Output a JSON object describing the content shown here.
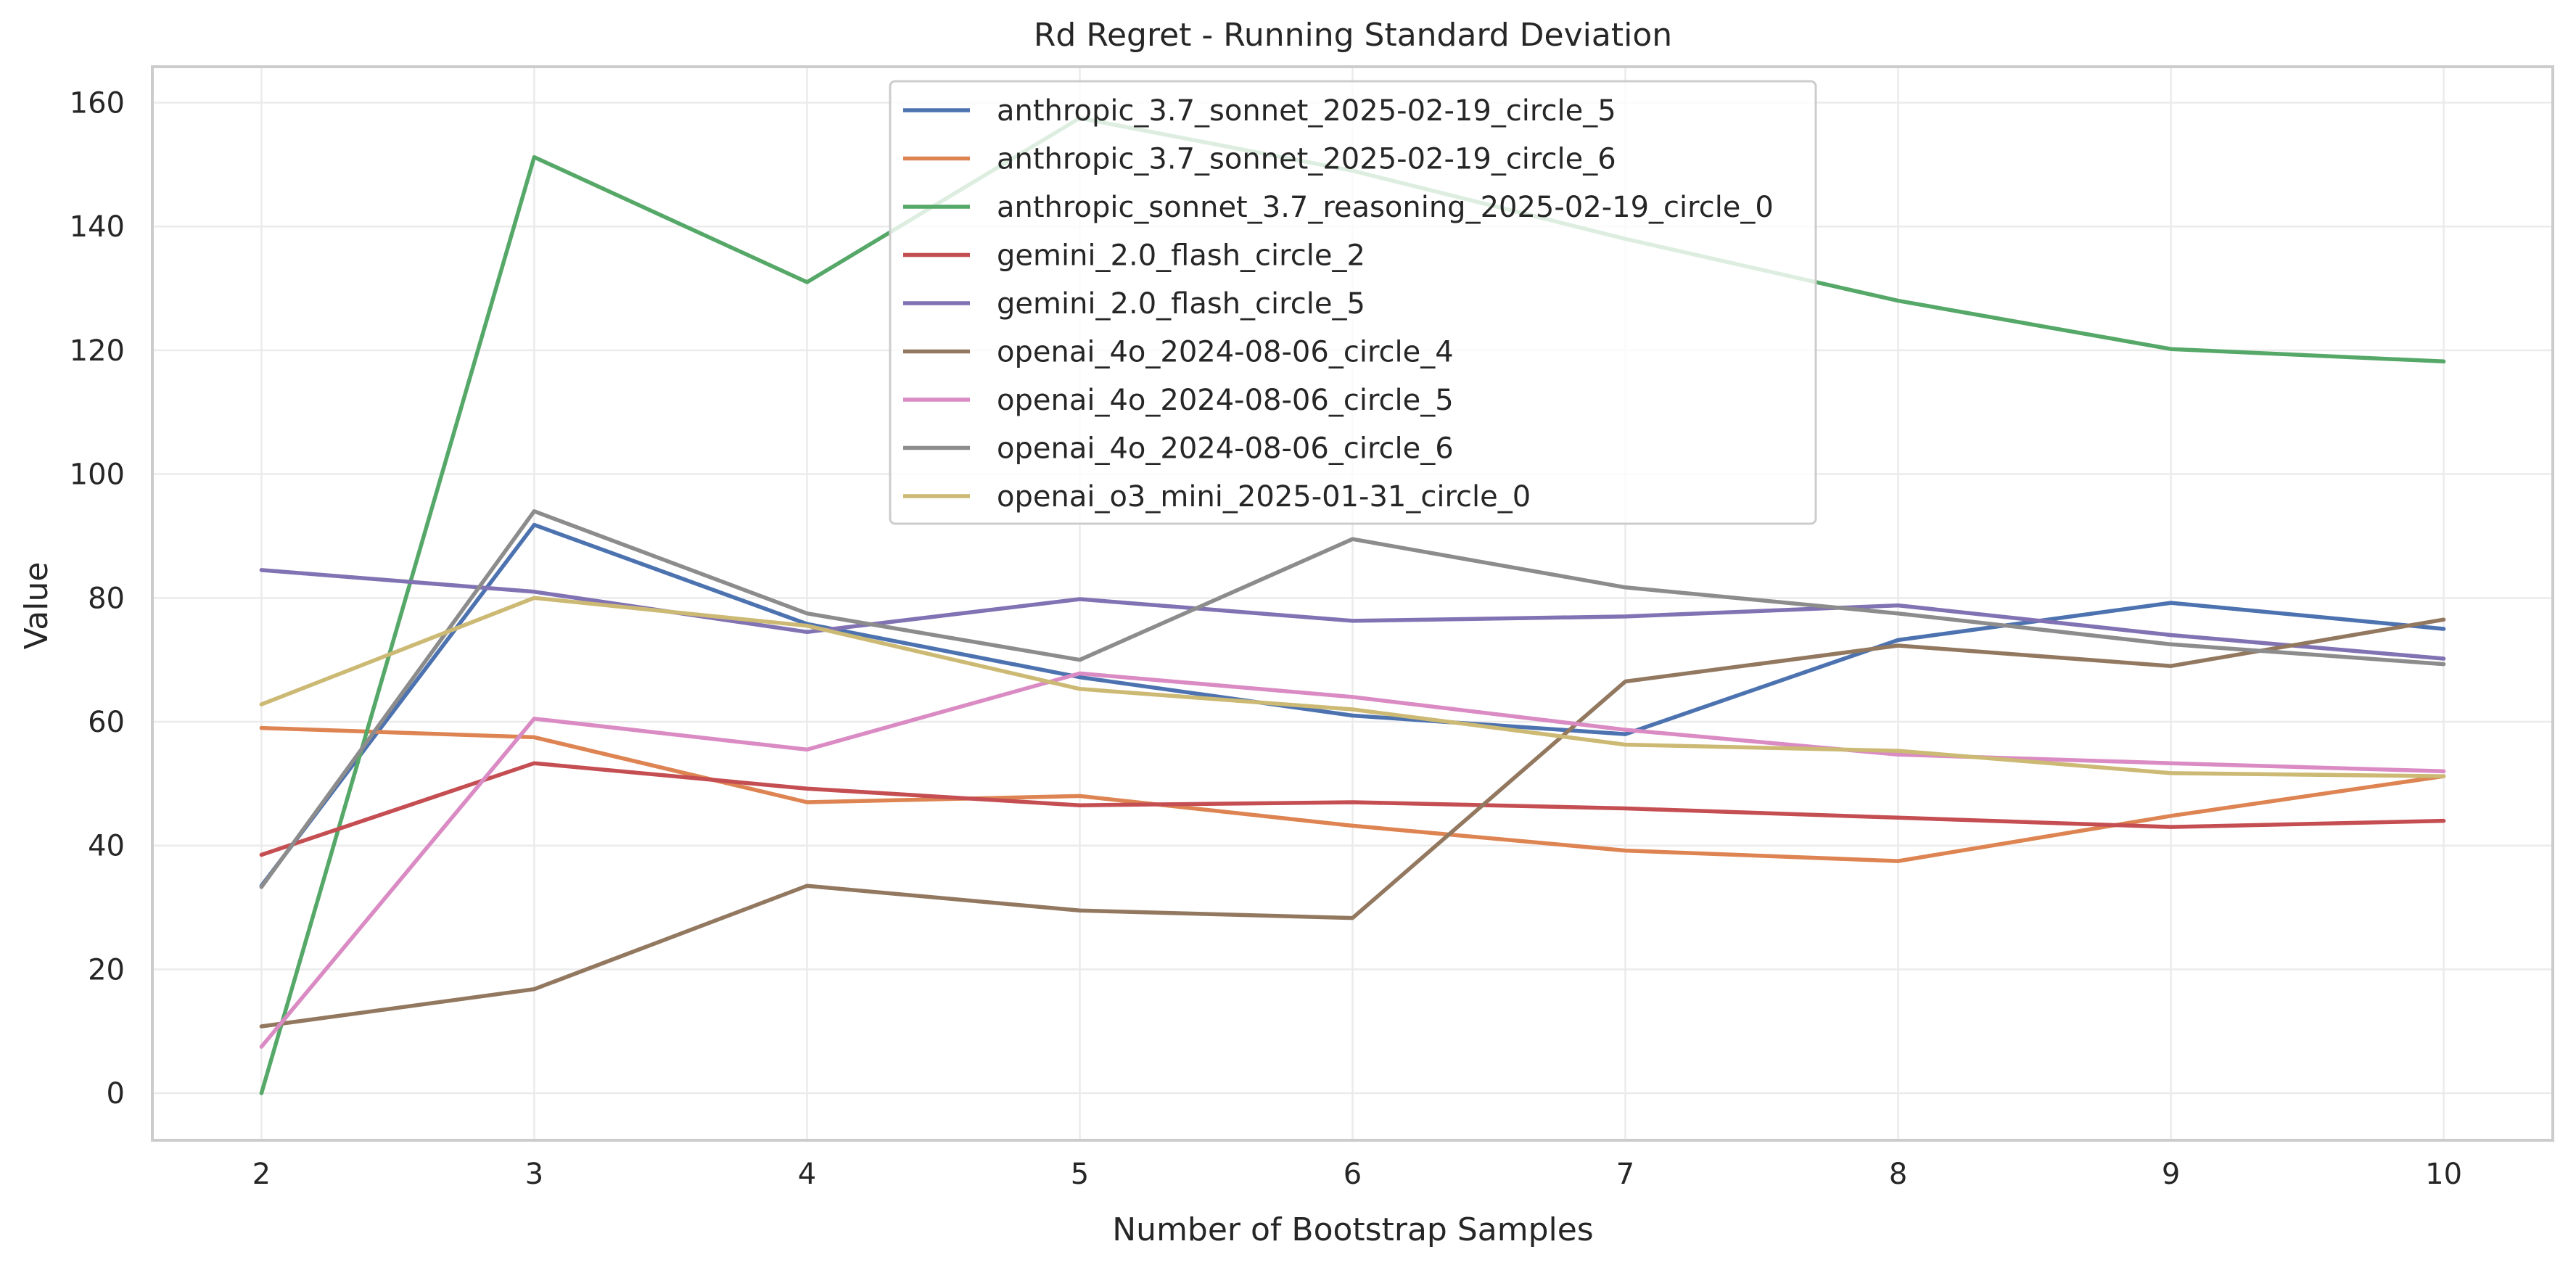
{
  "chart_data": {
    "type": "line",
    "title": "Rd Regret - Running Standard Deviation",
    "xlabel": "Number of Bootstrap Samples",
    "ylabel": "Value",
    "x": [
      2,
      3,
      4,
      5,
      6,
      7,
      8,
      9,
      10
    ],
    "xlim": [
      1.6,
      10.4
    ],
    "ylim": [
      -7.6,
      165.8
    ],
    "xticks": [
      2,
      3,
      4,
      5,
      6,
      7,
      8,
      9,
      10
    ],
    "yticks": [
      0,
      20,
      40,
      60,
      80,
      100,
      120,
      140,
      160
    ],
    "grid": true,
    "legend_position": "top-center",
    "series": [
      {
        "name": "anthropic_3.7_sonnet_2025-02-19_circle_5",
        "color": "#4c72b0",
        "values": [
          33.5,
          91.8,
          75.8,
          67.2,
          61.0,
          58.0,
          73.2,
          79.2,
          75.0
        ]
      },
      {
        "name": "anthropic_3.7_sonnet_2025-02-19_circle_6",
        "color": "#dd8452",
        "values": [
          59.0,
          57.5,
          47.0,
          48.0,
          43.2,
          39.2,
          37.5,
          44.8,
          51.2
        ]
      },
      {
        "name": "anthropic_sonnet_3.7_reasoning_2025-02-19_circle_0",
        "color": "#55a868",
        "values": [
          0.0,
          151.2,
          131.0,
          157.5,
          149.0,
          138.0,
          128.0,
          120.2,
          118.2
        ]
      },
      {
        "name": "gemini_2.0_flash_circle_2",
        "color": "#c44e52",
        "values": [
          38.5,
          53.3,
          49.2,
          46.5,
          47.0,
          46.0,
          44.5,
          43.0,
          44.0
        ]
      },
      {
        "name": "gemini_2.0_flash_circle_5",
        "color": "#8172b3",
        "values": [
          84.5,
          81.0,
          74.5,
          79.8,
          76.3,
          77.0,
          78.8,
          74.0,
          70.2
        ]
      },
      {
        "name": "openai_4o_2024-08-06_circle_4",
        "color": "#937860",
        "values": [
          10.8,
          16.8,
          33.5,
          29.5,
          28.3,
          66.5,
          72.3,
          69.0,
          76.5
        ]
      },
      {
        "name": "openai_4o_2024-08-06_circle_5",
        "color": "#da8bc3",
        "values": [
          7.5,
          60.5,
          55.5,
          67.8,
          64.0,
          58.7,
          54.7,
          53.3,
          52.0
        ]
      },
      {
        "name": "openai_4o_2024-08-06_circle_6",
        "color": "#8c8c8c",
        "values": [
          33.3,
          94.0,
          77.5,
          70.0,
          89.5,
          81.7,
          77.5,
          72.5,
          69.3
        ]
      },
      {
        "name": "openai_o3_mini_2025-01-31_circle_0",
        "color": "#ccb974",
        "values": [
          62.8,
          80.0,
          75.5,
          65.3,
          62.0,
          56.3,
          55.3,
          51.7,
          51.2
        ]
      }
    ]
  }
}
